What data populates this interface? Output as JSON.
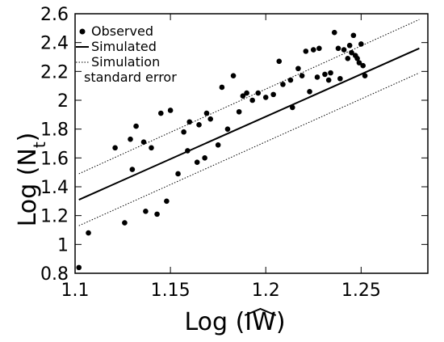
{
  "chart_data": {
    "type": "scatter",
    "xlabel": "Log (IW)",
    "xlabel_prefix": "Log (",
    "xlabel_var": "IW",
    "xlabel_suffix": ")",
    "ylabel": "Log (Nt)",
    "ylabel_prefix": "Log (N",
    "ylabel_sub": "t",
    "ylabel_suffix": ")",
    "xlim": [
      1.1,
      1.285
    ],
    "ylim": [
      0.8,
      2.6
    ],
    "xticks": [
      1.1,
      1.15,
      1.2,
      1.25
    ],
    "xtick_labels": [
      "1.1",
      "1.15",
      "1.2",
      "1.25"
    ],
    "yticks": [
      0.8,
      1,
      1.2,
      1.4,
      1.6,
      1.8,
      2,
      2.2,
      2.4,
      2.6
    ],
    "ytick_labels": [
      "0.8",
      "1",
      "1.2",
      "1.4",
      "1.6",
      "1.8",
      "2",
      "2.2",
      "2.4",
      "2.6"
    ],
    "grid": false,
    "legend_position": "top-left",
    "legend": [
      {
        "label": "Observed",
        "marker": "dot"
      },
      {
        "label": "Simulated",
        "marker": "solid-line"
      },
      {
        "label": "Simulation",
        "marker": "dotted-line"
      },
      {
        "label": "standard error",
        "marker": "none"
      }
    ],
    "series": [
      {
        "name": "Observed",
        "kind": "points",
        "points": [
          [
            1.102,
            0.84
          ],
          [
            1.107,
            1.08
          ],
          [
            1.121,
            1.67
          ],
          [
            1.126,
            1.15
          ],
          [
            1.129,
            1.73
          ],
          [
            1.13,
            1.52
          ],
          [
            1.132,
            1.82
          ],
          [
            1.136,
            1.71
          ],
          [
            1.137,
            1.23
          ],
          [
            1.14,
            1.67
          ],
          [
            1.143,
            1.21
          ],
          [
            1.145,
            1.91
          ],
          [
            1.148,
            1.3
          ],
          [
            1.15,
            1.93
          ],
          [
            1.154,
            1.49
          ],
          [
            1.157,
            1.78
          ],
          [
            1.159,
            1.65
          ],
          [
            1.16,
            1.85
          ],
          [
            1.164,
            1.57
          ],
          [
            1.165,
            1.83
          ],
          [
            1.168,
            1.6
          ],
          [
            1.169,
            1.91
          ],
          [
            1.171,
            1.87
          ],
          [
            1.175,
            1.69
          ],
          [
            1.177,
            2.09
          ],
          [
            1.18,
            1.8
          ],
          [
            1.183,
            2.17
          ],
          [
            1.186,
            1.92
          ],
          [
            1.188,
            2.03
          ],
          [
            1.19,
            2.05
          ],
          [
            1.193,
            2.0
          ],
          [
            1.196,
            2.05
          ],
          [
            1.2,
            2.02
          ],
          [
            1.204,
            2.04
          ],
          [
            1.207,
            2.27
          ],
          [
            1.209,
            2.11
          ],
          [
            1.213,
            2.14
          ],
          [
            1.214,
            1.95
          ],
          [
            1.217,
            2.22
          ],
          [
            1.219,
            2.17
          ],
          [
            1.221,
            2.34
          ],
          [
            1.223,
            2.06
          ],
          [
            1.225,
            2.35
          ],
          [
            1.227,
            2.16
          ],
          [
            1.228,
            2.36
          ],
          [
            1.231,
            2.18
          ],
          [
            1.233,
            2.14
          ],
          [
            1.234,
            2.19
          ],
          [
            1.236,
            2.47
          ],
          [
            1.238,
            2.36
          ],
          [
            1.239,
            2.15
          ],
          [
            1.241,
            2.35
          ],
          [
            1.243,
            2.29
          ],
          [
            1.244,
            2.38
          ],
          [
            1.245,
            2.33
          ],
          [
            1.246,
            2.45
          ],
          [
            1.247,
            2.31
          ],
          [
            1.248,
            2.29
          ],
          [
            1.249,
            2.26
          ],
          [
            1.25,
            2.39
          ],
          [
            1.251,
            2.24
          ],
          [
            1.252,
            2.17
          ]
        ]
      },
      {
        "name": "Simulated",
        "kind": "line",
        "points": [
          [
            1.102,
            1.31
          ],
          [
            1.2805,
            2.36
          ]
        ]
      },
      {
        "name": "Simulation standard error",
        "kind": "dotted-line",
        "points": [
          [
            1.102,
            1.49
          ],
          [
            1.2805,
            2.56
          ]
        ]
      },
      {
        "name": "Simulation standard error",
        "kind": "dotted-line",
        "points": [
          [
            1.102,
            1.13
          ],
          [
            1.2805,
            2.19
          ]
        ]
      }
    ]
  }
}
